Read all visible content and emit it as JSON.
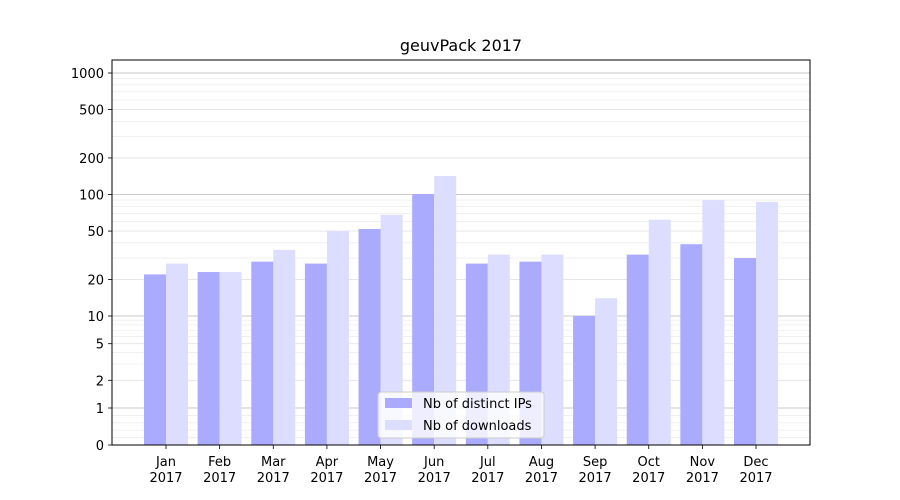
{
  "chart_data": {
    "type": "bar",
    "title": "geuvPack 2017",
    "xlabel": "",
    "ylabel": "",
    "yscale": "symlog",
    "ylim": [
      0,
      1200
    ],
    "yticks": [
      0,
      1,
      2,
      5,
      10,
      20,
      50,
      100,
      200,
      500,
      1000
    ],
    "grid": true,
    "legend_position": "bottom-center",
    "categories": [
      "Jan\n2017",
      "Feb\n2017",
      "Mar\n2017",
      "Apr\n2017",
      "May\n2017",
      "Jun\n2017",
      "Jul\n2017",
      "Aug\n2017",
      "Sep\n2017",
      "Oct\n2017",
      "Nov\n2017",
      "Dec\n2017"
    ],
    "series": [
      {
        "name": "Nb of distinct IPs",
        "color": "#aaaaff",
        "values": [
          22,
          23,
          28,
          27,
          52,
          101,
          27,
          28,
          10,
          32,
          39,
          30
        ]
      },
      {
        "name": "Nb of downloads",
        "color": "#ddddff",
        "values": [
          27,
          23,
          35,
          50,
          68,
          142,
          32,
          32,
          14,
          62,
          90,
          87
        ]
      }
    ]
  }
}
